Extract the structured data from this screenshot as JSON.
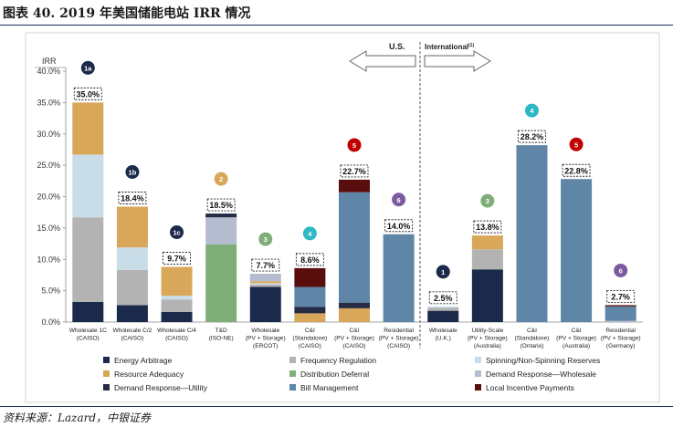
{
  "figure_title": "图表 40. 2019 年美国储能电站 IRR 情况",
  "source_note": "资料来源：Lazard，中银证券",
  "region_labels": {
    "us": "U.S.",
    "international": "International",
    "international_sup": "(1)"
  },
  "colors": {
    "energy_arbitrage": "#1b2a4a",
    "frequency_regulation": "#b3b3b3",
    "spinning_reserves": "#c9dde8",
    "resource_adequacy": "#d9a75a",
    "distribution_deferral": "#7fae79",
    "demand_response_wholesale": "#b4bccf",
    "demand_response_utility": "#262c45",
    "bill_management": "#5f86a6",
    "local_incentive_payments": "#5a0d0d",
    "badge_1": "#1b2a4a",
    "badge_2": "#d9a75a",
    "badge_3": "#7fae79",
    "badge_4": "#2cb8c4",
    "badge_5": "#c00000",
    "badge_6": "#7b5aa0"
  },
  "chart_data": {
    "type": "bar",
    "stacked": true,
    "title": "",
    "ylabel": "IRR",
    "xlabel": "",
    "ylim": [
      0,
      40
    ],
    "yticks": [
      "0.0%",
      "5.0%",
      "10.0%",
      "15.0%",
      "20.0%",
      "25.0%",
      "30.0%",
      "35.0%",
      "40.0%"
    ],
    "categories": [
      [
        "Wholesale 1C",
        "(CAISO)"
      ],
      [
        "Wholesale C/2",
        "(CAISO)"
      ],
      [
        "Wholesale C/4",
        "(CAISO)"
      ],
      [
        "T&D",
        "(ISO-NE)"
      ],
      [
        "Wholesale",
        "(PV + Storage)",
        "(ERCOT)"
      ],
      [
        "C&I",
        "(Standalone)",
        "(CAISO)"
      ],
      [
        "C&I",
        "(PV + Storage)",
        "(CAISO)"
      ],
      [
        "Residential",
        "(PV + Storage)",
        "(CAISO)"
      ],
      [
        "Wholesale",
        "(U.K.)"
      ],
      [
        "Utility-Scale",
        "(PV + Storage)",
        "(Australia)"
      ],
      [
        "C&I",
        "(Standalone)",
        "(Ontario)"
      ],
      [
        "C&I",
        "(PV + Storage)",
        "(Australia)"
      ],
      [
        "Residential",
        "(PV + Storage)",
        "(Germany)"
      ]
    ],
    "totals": [
      "35.0%",
      "18.4%",
      "9.7%",
      "18.5%",
      "7.7%",
      "8.6%",
      "22.7%",
      "14.0%",
      "2.5%",
      "13.8%",
      "28.2%",
      "22.8%",
      "2.7%"
    ],
    "badges": [
      "1a",
      "1b",
      "1c",
      "2",
      "3",
      "4",
      "5",
      "6",
      "1",
      "3",
      "4",
      "5",
      "6"
    ],
    "badge_colors": [
      "badge_1",
      "badge_1",
      "badge_1",
      "badge_2",
      "badge_3",
      "badge_4",
      "badge_5",
      "badge_6",
      "badge_1",
      "badge_3",
      "badge_4",
      "badge_5",
      "badge_6"
    ],
    "series": [
      {
        "name": "Energy Arbitrage",
        "key": "energy_arbitrage",
        "values": [
          3.2,
          2.7,
          1.6,
          0,
          5.6,
          0,
          0,
          0,
          1.8,
          8.4,
          0,
          0,
          0
        ]
      },
      {
        "name": "Frequency Regulation",
        "key": "frequency_regulation",
        "values": [
          13.5,
          5.6,
          2.0,
          0,
          0.4,
          0,
          0,
          0,
          0.5,
          3.2,
          0,
          0,
          0
        ]
      },
      {
        "name": "Spinning/Non-Spinning Reserves",
        "key": "spinning_reserves",
        "values": [
          10.0,
          3.6,
          0.6,
          0,
          0.2,
          0,
          0,
          0,
          0.2,
          0,
          0,
          0,
          0
        ]
      },
      {
        "name": "Resource Adequacy",
        "key": "resource_adequacy",
        "values": [
          8.3,
          6.5,
          4.6,
          0,
          0.3,
          1.4,
          2.2,
          0,
          0,
          2.2,
          0,
          0,
          0
        ]
      },
      {
        "name": "Distribution  Deferral",
        "key": "distribution_deferral",
        "values": [
          0,
          0,
          0,
          12.4,
          0,
          0,
          0,
          0,
          0,
          0,
          0,
          0,
          0
        ]
      },
      {
        "name": "Demand Response—Wholesale",
        "key": "demand_response_wholesale",
        "values": [
          0,
          0,
          0,
          4.3,
          1.2,
          0,
          0,
          0,
          0,
          0,
          0,
          0,
          0.2
        ]
      },
      {
        "name": "Demand Response—Utility",
        "key": "demand_response_utility",
        "values": [
          0,
          0,
          0,
          0.6,
          0,
          1.0,
          0.9,
          0,
          0,
          0,
          0,
          0,
          0
        ]
      },
      {
        "name": "Bill Management",
        "key": "bill_management",
        "values": [
          0,
          0,
          0,
          0,
          0,
          3.2,
          17.6,
          14.0,
          0,
          0,
          28.2,
          22.8,
          2.3
        ]
      },
      {
        "name": "Local Incentive Payments",
        "key": "local_incentive_payments",
        "values": [
          0,
          0,
          0,
          0,
          0,
          3.0,
          2.0,
          0,
          0,
          0,
          0,
          0,
          0.2
        ]
      }
    ],
    "legend_order": [
      [
        "energy_arbitrage",
        "frequency_regulation",
        "spinning_reserves"
      ],
      [
        "resource_adequacy",
        "distribution_deferral",
        "demand_response_wholesale"
      ],
      [
        "demand_response_utility",
        "bill_management",
        "local_incentive_payments"
      ]
    ],
    "region_split_after_index": 7
  }
}
